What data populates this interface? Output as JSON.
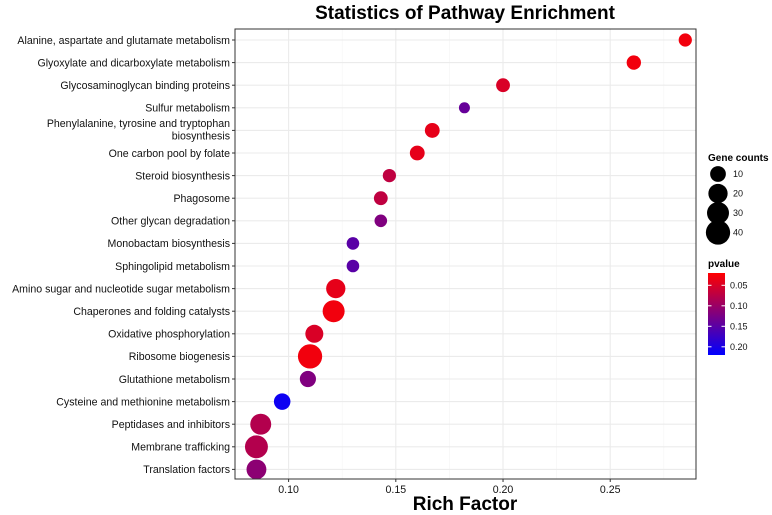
{
  "chart_data": {
    "type": "scatter",
    "title": "Statistics of Pathway Enrichment",
    "xlabel": "Rich Factor",
    "ylabel": "",
    "xlim": [
      0.075,
      0.29
    ],
    "xticks": [
      0.1,
      0.15,
      0.2,
      0.25
    ],
    "xtick_labels": [
      "0.10",
      "0.15",
      "0.20",
      "0.25"
    ],
    "grid": true,
    "points": [
      {
        "pathway": "Alanine, aspartate and glutamate metabolism",
        "label_lines": [
          "Alanine, aspartate and glutamate metabolism"
        ],
        "rich_factor": 0.285,
        "gene_count": 5,
        "pvalue": 0.03
      },
      {
        "pathway": "Glyoxylate and dicarboxylate metabolism",
        "label_lines": [
          "Glyoxylate and dicarboxylate metabolism"
        ],
        "rich_factor": 0.261,
        "gene_count": 7,
        "pvalue": 0.03
      },
      {
        "pathway": "Glycosaminoglycan binding proteins",
        "label_lines": [
          "Glycosaminoglycan binding proteins"
        ],
        "rich_factor": 0.2,
        "gene_count": 6,
        "pvalue": 0.05
      },
      {
        "pathway": "Sulfur metabolism",
        "label_lines": [
          "Sulfur metabolism"
        ],
        "rich_factor": 0.182,
        "gene_count": 2,
        "pvalue": 0.14
      },
      {
        "pathway": "Phenylalanine, tyrosine and tryptophan biosynthesis",
        "label_lines": [
          "Phenylalanine, tyrosine and tryptophan",
          "biosynthesis"
        ],
        "rich_factor": 0.167,
        "gene_count": 8,
        "pvalue": 0.04
      },
      {
        "pathway": "One carbon pool by folate",
        "label_lines": [
          "One carbon pool by folate"
        ],
        "rich_factor": 0.16,
        "gene_count": 8,
        "pvalue": 0.04
      },
      {
        "pathway": "Steroid biosynthesis",
        "label_lines": [
          "Steroid biosynthesis"
        ],
        "rich_factor": 0.147,
        "gene_count": 5,
        "pvalue": 0.07
      },
      {
        "pathway": "Phagosome",
        "label_lines": [
          "Phagosome"
        ],
        "rich_factor": 0.143,
        "gene_count": 6,
        "pvalue": 0.07
      },
      {
        "pathway": "Other glycan degradation",
        "label_lines": [
          "Other glycan degradation"
        ],
        "rich_factor": 0.143,
        "gene_count": 4,
        "pvalue": 0.12
      },
      {
        "pathway": "Monobactam biosynthesis",
        "label_lines": [
          "Monobactam biosynthesis"
        ],
        "rich_factor": 0.13,
        "gene_count": 4,
        "pvalue": 0.15
      },
      {
        "pathway": "Sphingolipid metabolism",
        "label_lines": [
          "Sphingolipid metabolism"
        ],
        "rich_factor": 0.13,
        "gene_count": 4,
        "pvalue": 0.15
      },
      {
        "pathway": "Amino sugar and nucleotide sugar metabolism",
        "label_lines": [
          "Amino sugar and nucleotide sugar metabolism"
        ],
        "rich_factor": 0.122,
        "gene_count": 20,
        "pvalue": 0.04
      },
      {
        "pathway": "Chaperones and folding catalysts",
        "label_lines": [
          "Chaperones and folding catalysts"
        ],
        "rich_factor": 0.121,
        "gene_count": 30,
        "pvalue": 0.03
      },
      {
        "pathway": "Oxidative phosphorylation",
        "label_lines": [
          "Oxidative phosphorylation"
        ],
        "rich_factor": 0.112,
        "gene_count": 16,
        "pvalue": 0.05
      },
      {
        "pathway": "Ribosome biogenesis",
        "label_lines": [
          "Ribosome biogenesis"
        ],
        "rich_factor": 0.11,
        "gene_count": 40,
        "pvalue": 0.03
      },
      {
        "pathway": "Glutathione metabolism",
        "label_lines": [
          "Glutathione metabolism"
        ],
        "rich_factor": 0.109,
        "gene_count": 11,
        "pvalue": 0.12
      },
      {
        "pathway": "Cysteine and methionine metabolism",
        "label_lines": [
          "Cysteine and methionine metabolism"
        ],
        "rich_factor": 0.097,
        "gene_count": 12,
        "pvalue": 0.21
      },
      {
        "pathway": "Peptidases and inhibitors",
        "label_lines": [
          "Peptidases and inhibitors"
        ],
        "rich_factor": 0.087,
        "gene_count": 26,
        "pvalue": 0.08
      },
      {
        "pathway": "Membrane trafficking",
        "label_lines": [
          "Membrane trafficking"
        ],
        "rich_factor": 0.085,
        "gene_count": 34,
        "pvalue": 0.08
      },
      {
        "pathway": "Translation factors",
        "label_lines": [
          "Translation factors"
        ],
        "rich_factor": 0.085,
        "gene_count": 22,
        "pvalue": 0.11
      }
    ],
    "legend_size": {
      "title": "Gene counts",
      "values": [
        10,
        20,
        30,
        40
      ],
      "labels": [
        "10",
        "20",
        "30",
        "40"
      ],
      "placement": "right"
    },
    "legend_color": {
      "title": "pvalue",
      "range": [
        0.02,
        0.22
      ],
      "ticks": [
        0.05,
        0.1,
        0.15,
        0.2
      ],
      "tick_labels": [
        "0.05",
        "0.10",
        "0.15",
        "0.20"
      ],
      "low_color": "#ff0000",
      "high_color": "#0000ff",
      "placement": "right"
    },
    "colors": {
      "panel_background": "#ffffff",
      "grid": "#ebebeb",
      "panel_border": "#333333",
      "point_fill_low_p": "#ff0000",
      "point_fill_high_p": "#0000ff"
    }
  }
}
